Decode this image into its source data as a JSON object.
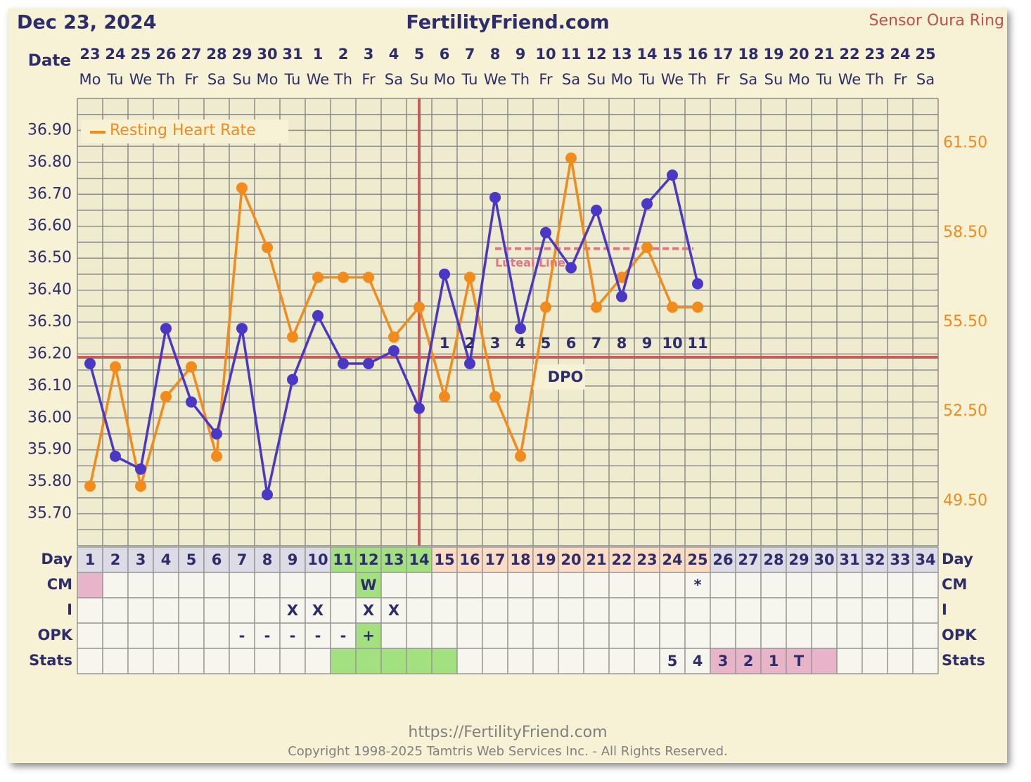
{
  "header": {
    "date": "Dec 23, 2024",
    "site": "FertilityFriend.com",
    "sensor": "Sensor Oura Ring"
  },
  "chart_data": {
    "type": "line",
    "date_label": "Date",
    "categories": [
      1,
      2,
      3,
      4,
      5,
      6,
      7,
      8,
      9,
      10,
      11,
      12,
      13,
      14,
      15,
      16,
      17,
      18,
      19,
      20,
      21,
      22,
      23,
      24,
      25,
      26,
      27,
      28,
      29,
      30,
      31,
      32,
      33,
      34
    ],
    "dates": [
      "23",
      "24",
      "25",
      "26",
      "27",
      "28",
      "29",
      "30",
      "31",
      "1",
      "2",
      "3",
      "4",
      "5",
      "6",
      "7",
      "8",
      "9",
      "10",
      "11",
      "12",
      "13",
      "14",
      "15",
      "16",
      "17",
      "18",
      "19",
      "20",
      "21",
      "22",
      "23",
      "24",
      "25"
    ],
    "weekdays": [
      "Mo",
      "Tu",
      "We",
      "Th",
      "Fr",
      "Sa",
      "Su",
      "Mo",
      "Tu",
      "We",
      "Th",
      "Fr",
      "Sa",
      "Su",
      "Mo",
      "Tu",
      "We",
      "Th",
      "Fr",
      "Sa",
      "Su",
      "Mo",
      "Tu",
      "We",
      "Th",
      "Fr",
      "Sa",
      "Su",
      "Mo",
      "Tu",
      "We",
      "Th",
      "Fr",
      "Sa"
    ],
    "ylim": [
      35.6,
      37.0
    ],
    "yticks": [
      {
        "value": 35.7,
        "label": "35.70"
      },
      {
        "value": 35.8,
        "label": "35.80"
      },
      {
        "value": 35.9,
        "label": "35.90"
      },
      {
        "value": 36.0,
        "label": "36.00"
      },
      {
        "value": 36.1,
        "label": "36.10"
      },
      {
        "value": 36.2,
        "label": "36.20"
      },
      {
        "value": 36.3,
        "label": "36.30"
      },
      {
        "value": 36.4,
        "label": "36.40"
      },
      {
        "value": 36.5,
        "label": "36.50"
      },
      {
        "value": 36.6,
        "label": "36.60"
      },
      {
        "value": 36.7,
        "label": "36.70"
      },
      {
        "value": 36.8,
        "label": "36.80"
      },
      {
        "value": 36.9,
        "label": "36.90"
      }
    ],
    "y2lim": [
      48,
      63
    ],
    "y2ticks": [
      {
        "value": 49.5,
        "label": "49.50"
      },
      {
        "value": 52.5,
        "label": "52.50"
      },
      {
        "value": 55.5,
        "label": "55.50"
      },
      {
        "value": 58.5,
        "label": "58.50"
      },
      {
        "value": 61.5,
        "label": "61.50"
      }
    ],
    "grid": true,
    "series": [
      {
        "color": "#4b37c6",
        "values": [
          36.17,
          35.88,
          35.84,
          36.28,
          36.05,
          35.95,
          36.28,
          35.76,
          36.12,
          36.32,
          36.17,
          36.17,
          36.21,
          36.03,
          36.45,
          36.17,
          36.69,
          36.28,
          36.58,
          36.47,
          36.65,
          36.38,
          36.67,
          36.76,
          36.42,
          null,
          null,
          null,
          null,
          null,
          null,
          null,
          null,
          null
        ]
      },
      {
        "name": "Resting Heart Rate",
        "color": "#f28a1c",
        "axis": "y2",
        "values": [
          50,
          54,
          50,
          53,
          54,
          51,
          60,
          58,
          55,
          57,
          57,
          57,
          55,
          56,
          53,
          57,
          53,
          51,
          56,
          61,
          56,
          57,
          58,
          56,
          56,
          null,
          null,
          null,
          null,
          null,
          null,
          null,
          null,
          null
        ]
      }
    ],
    "coverline": 36.19,
    "ovulation_day": 14,
    "luteal_line": {
      "label": "Luteal Line",
      "value": 36.53,
      "from_day": 17,
      "to_day": 25
    },
    "dpo_label": "DPO",
    "dpo": [
      null,
      null,
      null,
      null,
      null,
      null,
      null,
      null,
      null,
      null,
      null,
      null,
      null,
      null,
      1,
      2,
      3,
      4,
      5,
      6,
      7,
      8,
      9,
      10,
      11,
      null,
      null,
      null,
      null,
      null,
      null,
      null,
      null,
      null
    ]
  },
  "table": {
    "day_label": "Day",
    "day_fills": [
      "#dcdbe6",
      "#dcdbe6",
      "#dcdbe6",
      "#dcdbe6",
      "#dcdbe6",
      "#dcdbe6",
      "#dcdbe6",
      "#dcdbe6",
      "#dcdbe6",
      "#dcdbe6",
      "#a3e07f",
      "#a3e07f",
      "#a3e07f",
      "#a3e07f",
      "#fcdcc2",
      "#fcdcc2",
      "#fcdcc2",
      "#fcdcc2",
      "#fcdcc2",
      "#fcdcc2",
      "#fcdcc2",
      "#fcdcc2",
      "#fcdcc2",
      "#fcdcc2",
      "#fcdcc2",
      "#dcdbe6",
      "#dcdbe6",
      "#dcdbe6",
      "#dcdbe6",
      "#dcdbe6",
      "#dcdbe6",
      "#dcdbe6",
      "#dcdbe6",
      "#dcdbe6"
    ],
    "rows": [
      {
        "label": "CM",
        "cells": [
          null,
          null,
          null,
          null,
          null,
          null,
          null,
          null,
          null,
          null,
          null,
          "W",
          null,
          null,
          null,
          null,
          null,
          null,
          null,
          null,
          null,
          null,
          null,
          null,
          "*",
          null,
          null,
          null,
          null,
          null,
          null,
          null,
          null,
          null
        ],
        "fills": [
          "#e8b4c8",
          null,
          null,
          null,
          null,
          null,
          null,
          null,
          null,
          null,
          null,
          "#a3e07f",
          null,
          null,
          null,
          null,
          null,
          null,
          null,
          null,
          null,
          null,
          null,
          null,
          null,
          null,
          null,
          null,
          null,
          null,
          null,
          null,
          null,
          null
        ]
      },
      {
        "label": "I",
        "cells": [
          null,
          null,
          null,
          null,
          null,
          null,
          null,
          null,
          "X",
          "X",
          null,
          "X",
          "X",
          null,
          null,
          null,
          null,
          null,
          null,
          null,
          null,
          null,
          null,
          null,
          null,
          null,
          null,
          null,
          null,
          null,
          null,
          null,
          null,
          null
        ],
        "fills": [
          null,
          null,
          null,
          null,
          null,
          null,
          null,
          null,
          null,
          null,
          null,
          null,
          null,
          null,
          null,
          null,
          null,
          null,
          null,
          null,
          null,
          null,
          null,
          null,
          null,
          null,
          null,
          null,
          null,
          null,
          null,
          null,
          null,
          null
        ]
      },
      {
        "label": "OPK",
        "cells": [
          null,
          null,
          null,
          null,
          null,
          null,
          "-",
          "-",
          "-",
          "-",
          "-",
          "+",
          null,
          null,
          null,
          null,
          null,
          null,
          null,
          null,
          null,
          null,
          null,
          null,
          null,
          null,
          null,
          null,
          null,
          null,
          null,
          null,
          null,
          null
        ],
        "fills": [
          null,
          null,
          null,
          null,
          null,
          null,
          null,
          null,
          null,
          null,
          null,
          "#a3e07f",
          null,
          null,
          null,
          null,
          null,
          null,
          null,
          null,
          null,
          null,
          null,
          null,
          null,
          null,
          null,
          null,
          null,
          null,
          null,
          null,
          null,
          null
        ]
      },
      {
        "label": "Stats",
        "cells": [
          null,
          null,
          null,
          null,
          null,
          null,
          null,
          null,
          null,
          null,
          null,
          null,
          null,
          null,
          null,
          null,
          null,
          null,
          null,
          null,
          null,
          null,
          null,
          "5",
          "4",
          "3",
          "2",
          "1",
          "T",
          null,
          null,
          null,
          null,
          null
        ],
        "fills": [
          null,
          null,
          null,
          null,
          null,
          null,
          null,
          null,
          null,
          null,
          "#a3e07f",
          "#a3e07f",
          "#a3e07f",
          "#a3e07f",
          "#a3e07f",
          null,
          null,
          null,
          null,
          null,
          null,
          null,
          null,
          null,
          null,
          "#e8b4c8",
          "#e8b4c8",
          "#e8b4c8",
          "#e8b4c8",
          "#e8b4c8",
          null,
          null,
          null,
          null
        ]
      }
    ]
  },
  "footer": {
    "url": "https://FertilityFriend.com",
    "copyright": "Copyright 1998-2025 Tamtris Web Services Inc. - All Rights Reserved."
  }
}
